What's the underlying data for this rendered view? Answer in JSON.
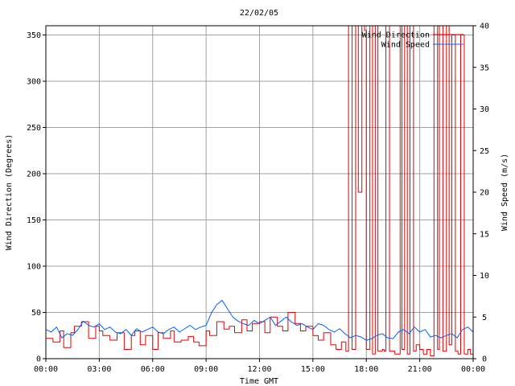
{
  "chart_data": {
    "type": "line",
    "title": "22/02/05",
    "xlabel": "Time GMT",
    "ylabel": "Wind Direction (Degrees)",
    "y2label": "Wind Speed (m/s)",
    "xlim": [
      0,
      24
    ],
    "ylim": [
      0,
      360
    ],
    "y2lim": [
      0,
      40
    ],
    "x_ticks": [
      "00:00",
      "03:00",
      "06:00",
      "09:00",
      "12:00",
      "15:00",
      "18:00",
      "21:00",
      "00:00"
    ],
    "y_ticks": [
      "0",
      "50",
      "100",
      "150",
      "200",
      "250",
      "300",
      "350"
    ],
    "y2_ticks": [
      "0",
      "5",
      "10",
      "15",
      "20",
      "25",
      "30",
      "35",
      "40"
    ],
    "grid": true,
    "legend_position": "top-right",
    "series": [
      {
        "name": "Wind Direction",
        "axis": "left",
        "color": "#e00000",
        "step": true,
        "x": [
          0,
          0.4,
          0.8,
          1.0,
          1.4,
          1.6,
          2.0,
          2.4,
          2.8,
          3.0,
          3.2,
          3.6,
          4.0,
          4.4,
          4.8,
          5.0,
          5.3,
          5.6,
          6.0,
          6.3,
          6.6,
          7.0,
          7.2,
          7.6,
          8.0,
          8.3,
          8.6,
          9.0,
          9.2,
          9.6,
          10.0,
          10.3,
          10.6,
          11.0,
          11.3,
          11.6,
          12.0,
          12.3,
          12.6,
          13.0,
          13.3,
          13.6,
          14.0,
          14.3,
          14.6,
          15.0,
          15.3,
          15.6,
          16.0,
          16.3,
          16.6,
          16.85,
          17.0,
          17.2,
          17.4,
          17.55,
          17.75,
          17.9,
          18.0,
          18.2,
          18.35,
          18.5,
          18.65,
          18.9,
          19.0,
          19.1,
          19.3,
          19.6,
          19.9,
          20.0,
          20.15,
          20.3,
          20.45,
          20.65,
          20.8,
          21.0,
          21.2,
          21.4,
          21.6,
          21.8,
          22.0,
          22.1,
          22.3,
          22.5,
          22.65,
          22.8,
          23.0,
          23.15,
          23.3,
          23.5,
          23.7,
          23.85,
          24.0
        ],
        "values": [
          22,
          18,
          30,
          12,
          28,
          35,
          40,
          22,
          35,
          30,
          25,
          20,
          28,
          10,
          25,
          30,
          15,
          25,
          10,
          28,
          22,
          30,
          18,
          20,
          24,
          18,
          14,
          30,
          25,
          40,
          32,
          35,
          28,
          42,
          30,
          38,
          40,
          28,
          45,
          35,
          30,
          50,
          38,
          30,
          35,
          25,
          20,
          28,
          15,
          10,
          18,
          8,
          360,
          10,
          360,
          180,
          360,
          355,
          10,
          360,
          5,
          360,
          8,
          10,
          8,
          360,
          8,
          5,
          360,
          10,
          360,
          5,
          360,
          8,
          15,
          10,
          5,
          10,
          3,
          360,
          10,
          360,
          8,
          360,
          15,
          350,
          8,
          5,
          350,
          5,
          10,
          5,
          8
        ]
      },
      {
        "name": "Wind Speed",
        "axis": "right",
        "color": "#0060ff",
        "step": false,
        "x": [
          0,
          0.3,
          0.6,
          0.9,
          1.2,
          1.5,
          1.8,
          2.1,
          2.4,
          2.7,
          3.0,
          3.3,
          3.6,
          3.9,
          4.2,
          4.5,
          4.8,
          5.1,
          5.4,
          5.7,
          6.0,
          6.3,
          6.6,
          6.9,
          7.2,
          7.5,
          7.8,
          8.1,
          8.4,
          8.7,
          9.0,
          9.3,
          9.6,
          9.9,
          10.2,
          10.5,
          10.8,
          11.1,
          11.4,
          11.7,
          12.0,
          12.3,
          12.6,
          12.9,
          13.2,
          13.5,
          13.8,
          14.1,
          14.4,
          14.7,
          15.0,
          15.3,
          15.6,
          15.9,
          16.2,
          16.5,
          16.8,
          17.1,
          17.4,
          17.7,
          18.0,
          18.3,
          18.6,
          18.9,
          19.2,
          19.5,
          19.8,
          20.1,
          20.4,
          20.7,
          21.0,
          21.3,
          21.6,
          21.9,
          22.2,
          22.5,
          22.8,
          23.1,
          23.4,
          23.7,
          24.0
        ],
        "values": [
          3.5,
          3.2,
          3.8,
          2.5,
          3.0,
          2.8,
          3.5,
          4.5,
          4.0,
          3.8,
          4.2,
          3.5,
          3.8,
          3.2,
          3.0,
          3.5,
          2.8,
          3.6,
          3.2,
          3.5,
          3.8,
          3.2,
          3.0,
          3.5,
          3.8,
          3.2,
          3.6,
          4.0,
          3.5,
          3.8,
          4.0,
          5.5,
          6.5,
          7.0,
          6.0,
          5.0,
          4.5,
          4.2,
          4.0,
          4.6,
          4.2,
          4.6,
          5.0,
          4.0,
          4.5,
          5.0,
          4.4,
          4.0,
          4.2,
          3.8,
          3.5,
          4.2,
          4.0,
          3.5,
          3.2,
          3.6,
          3.0,
          2.5,
          2.8,
          2.6,
          2.2,
          2.4,
          2.8,
          3.0,
          2.5,
          2.4,
          3.2,
          3.5,
          3.0,
          3.8,
          3.2,
          3.5,
          2.6,
          2.8,
          2.5,
          2.8,
          3.0,
          2.5,
          3.5,
          3.8,
          3.2
        ]
      }
    ]
  }
}
